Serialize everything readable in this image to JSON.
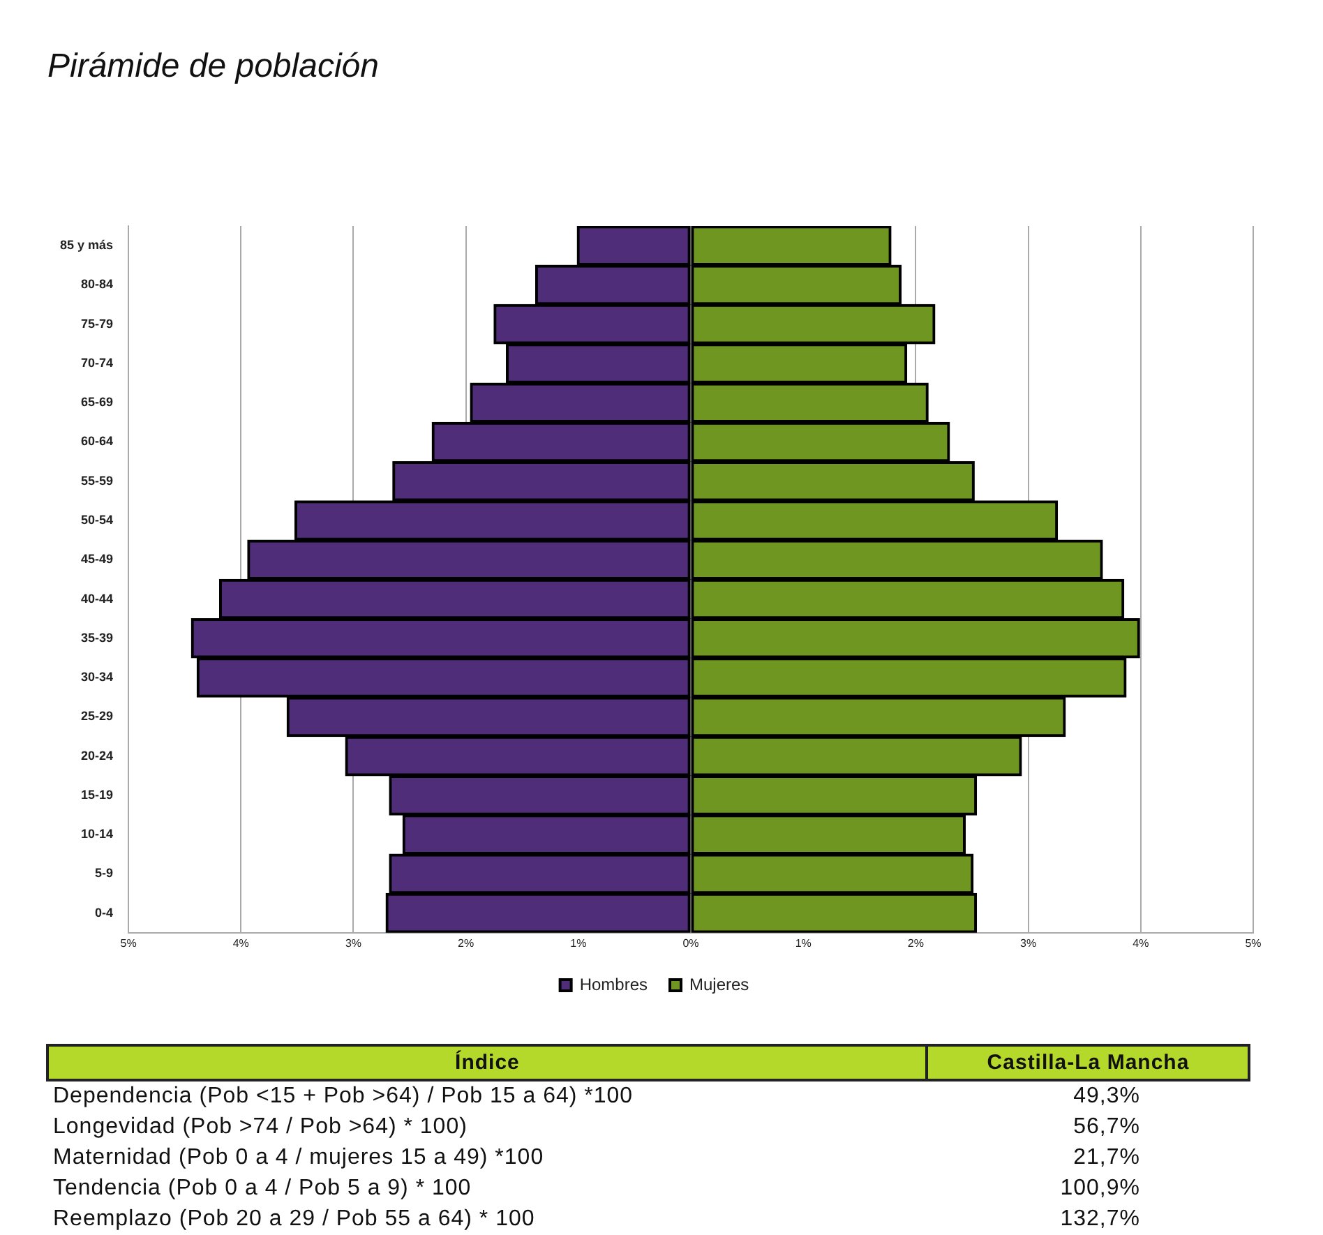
{
  "chart_data": {
    "type": "bar",
    "orientation": "horizontal",
    "stacked": true,
    "title": "Pirámide de población",
    "categories": [
      "85 y más",
      "80-84",
      "75-79",
      "70-74",
      "65-69",
      "60-64",
      "55-59",
      "50-54",
      "45-49",
      "40-44",
      "35-39",
      "30-34",
      "25-29",
      "20-24",
      "15-19",
      "10-14",
      "5-9",
      "0-4"
    ],
    "series": [
      {
        "name": "Hombres",
        "color": "#4f2d78",
        "values": [
          -1.01,
          -1.38,
          -1.75,
          -1.64,
          -1.96,
          -2.3,
          -2.65,
          -3.52,
          -3.94,
          -4.19,
          -4.44,
          -4.39,
          -3.59,
          -3.07,
          -2.68,
          -2.56,
          -2.68,
          -2.71
        ]
      },
      {
        "name": "Mujeres",
        "color": "#6e9620",
        "values": [
          1.78,
          1.87,
          2.17,
          1.92,
          2.11,
          2.3,
          2.52,
          3.26,
          3.66,
          3.85,
          3.99,
          3.87,
          3.33,
          2.94,
          2.54,
          2.44,
          2.51,
          2.54
        ]
      }
    ],
    "xlim": [
      -5,
      5
    ],
    "xticks": [
      {
        "value": -5,
        "label": "5%"
      },
      {
        "value": -4,
        "label": "4%"
      },
      {
        "value": -3,
        "label": "3%"
      },
      {
        "value": -2,
        "label": "2%"
      },
      {
        "value": -1,
        "label": "1%"
      },
      {
        "value": 0,
        "label": "0%"
      },
      {
        "value": 1,
        "label": "1%"
      },
      {
        "value": 2,
        "label": "2%"
      },
      {
        "value": 3,
        "label": "3%"
      },
      {
        "value": 4,
        "label": "4%"
      },
      {
        "value": 5,
        "label": "5%"
      }
    ],
    "grid": "x",
    "legend": "bottom",
    "annotations": [
      "Índice",
      "Castilla-La Mancha",
      "Dependencia (Pob <15 + Pob >64) / Pob 15 a 64) *100",
      "49,3%",
      "Longevidad (Pob >74 / Pob >64) * 100)",
      "56,7%",
      "Maternidad (Pob 0 a 4 / mujeres 15 a 49) *100",
      "21,7%",
      "Tendencia (Pob 0 a 4 / Pob 5 a 9) * 100",
      "100,9%",
      "Reemplazo (Pob 20 a 29 / Pob 55 a 64) * 100",
      "132,7%"
    ]
  }
}
